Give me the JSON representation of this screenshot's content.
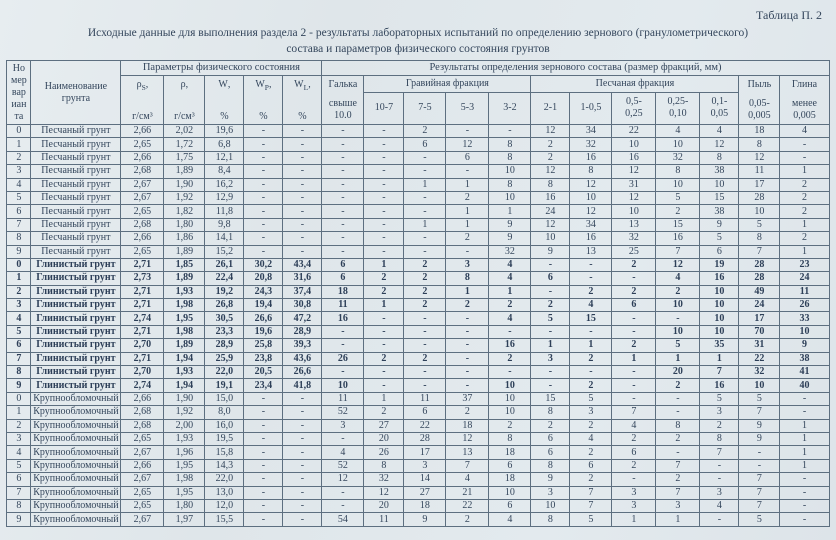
{
  "page": {
    "table_label": "Таблица П. 2",
    "caption_line1": "Исходные данные для выполнения  раздела 2 - результаты лабораторных испытаний по определению зернового (гранулометрического)",
    "caption_line2": "состава и параметров физического состояния грунтов"
  },
  "header": {
    "col_num_lines": [
      "Но",
      "мер",
      "вар",
      "иан",
      "та"
    ],
    "col_name": "Наименование\nгрунта",
    "group_phys": "Параметры физического состояния",
    "group_grain": "Результаты определения зернового состава (размер фракций, мм)",
    "phys_cols": [
      {
        "sym": "ρ",
        "sub": "S",
        "tail": ",",
        "unit": "г/см³"
      },
      {
        "sym": "ρ",
        "sub": "",
        "tail": ",",
        "unit": "г/см³"
      },
      {
        "sym": "W",
        "sub": "",
        "tail": ",",
        "unit": "%"
      },
      {
        "sym": "W",
        "sub": "P",
        "tail": ",",
        "unit": "%"
      },
      {
        "sym": "W",
        "sub": "L",
        "tail": ",",
        "unit": "%"
      }
    ],
    "col_galka": [
      "Галька",
      "свыше",
      "10.0"
    ],
    "group_gravel": "Гравийная фракция",
    "gravel_cols": [
      "10-7",
      "7-5",
      "5-3",
      "3-2"
    ],
    "group_sand": "Песчаная фракция",
    "sand_cols": [
      "2-1",
      "1-0,5",
      "0,5-\n0,25",
      "0,25-\n0,10",
      "0,1-\n0,05"
    ],
    "col_dust": [
      "Пыль",
      "0,05-",
      "0,005"
    ],
    "col_clay": [
      "Глина",
      "менее",
      "0,005"
    ]
  },
  "rows": [
    {
      "num": "0",
      "name": "Песчаный грунт",
      "bold": false,
      "values": [
        "2,66",
        "2,02",
        "19,6",
        "-",
        "-",
        "-",
        "-",
        "2",
        "-",
        "-",
        "12",
        "34",
        "22",
        "4",
        "4",
        "18",
        "4"
      ]
    },
    {
      "num": "1",
      "name": "Песчаный грунт",
      "bold": false,
      "values": [
        "2,65",
        "1,72",
        "6,8",
        "-",
        "-",
        "-",
        "-",
        "6",
        "12",
        "8",
        "2",
        "32",
        "10",
        "10",
        "12",
        "8",
        "-"
      ]
    },
    {
      "num": "2",
      "name": "Песчаный грунт",
      "bold": false,
      "values": [
        "2,66",
        "1,75",
        "12,1",
        "-",
        "-",
        "-",
        "-",
        "-",
        "6",
        "8",
        "2",
        "16",
        "16",
        "32",
        "8",
        "12",
        "-"
      ]
    },
    {
      "num": "3",
      "name": "Песчаный грунт",
      "bold": false,
      "values": [
        "2,68",
        "1,89",
        "8,4",
        "-",
        "-",
        "-",
        "-",
        "-",
        "-",
        "10",
        "12",
        "8",
        "12",
        "8",
        "38",
        "11",
        "1"
      ]
    },
    {
      "num": "4",
      "name": "Песчаный грунт",
      "bold": false,
      "values": [
        "2,67",
        "1,90",
        "16,2",
        "-",
        "-",
        "-",
        "-",
        "1",
        "1",
        "8",
        "8",
        "12",
        "31",
        "10",
        "10",
        "17",
        "2"
      ]
    },
    {
      "num": "5",
      "name": "Песчаный грунт",
      "bold": false,
      "values": [
        "2,67",
        "1,92",
        "12,9",
        "-",
        "-",
        "-",
        "-",
        "-",
        "2",
        "10",
        "16",
        "10",
        "12",
        "5",
        "15",
        "28",
        "2"
      ]
    },
    {
      "num": "6",
      "name": "Песчаный грунт",
      "bold": false,
      "values": [
        "2,65",
        "1,82",
        "11,8",
        "-",
        "-",
        "-",
        "-",
        "-",
        "1",
        "1",
        "24",
        "12",
        "10",
        "2",
        "38",
        "10",
        "2"
      ]
    },
    {
      "num": "7",
      "name": "Песчаный грунт",
      "bold": false,
      "values": [
        "2,68",
        "1,80",
        "9,8",
        "-",
        "-",
        "-",
        "-",
        "1",
        "1",
        "9",
        "12",
        "34",
        "13",
        "15",
        "9",
        "5",
        "1"
      ]
    },
    {
      "num": "8",
      "name": "Песчаный грунт",
      "bold": false,
      "values": [
        "2,66",
        "1,86",
        "14,1",
        "-",
        "-",
        "-",
        "-",
        "-",
        "2",
        "9",
        "10",
        "16",
        "32",
        "16",
        "5",
        "8",
        "2"
      ]
    },
    {
      "num": "9",
      "name": "Песчаный грунт",
      "bold": false,
      "values": [
        "2,65",
        "1,89",
        "15,2",
        "-",
        "-",
        "-",
        "-",
        "-",
        "-",
        "32",
        "9",
        "13",
        "25",
        "7",
        "6",
        "7",
        "1"
      ]
    },
    {
      "num": "0",
      "name": "Глинистый грунт",
      "bold": true,
      "values": [
        "2,71",
        "1,85",
        "26,1",
        "30,2",
        "43,4",
        "6",
        "1",
        "2",
        "3",
        "4",
        "-",
        "-",
        "2",
        "12",
        "19",
        "28",
        "23"
      ]
    },
    {
      "num": "1",
      "name": "Глинистый грунт",
      "bold": true,
      "values": [
        "2,73",
        "1,89",
        "22,4",
        "20,8",
        "31,6",
        "6",
        "2",
        "2",
        "8",
        "4",
        "6",
        "-",
        "-",
        "4",
        "16",
        "28",
        "24"
      ]
    },
    {
      "num": "2",
      "name": "Глинистый грунт",
      "bold": true,
      "values": [
        "2,71",
        "1,93",
        "19,2",
        "24,3",
        "37,4",
        "18",
        "2",
        "2",
        "1",
        "1",
        "-",
        "2",
        "2",
        "2",
        "10",
        "49",
        "11"
      ]
    },
    {
      "num": "3",
      "name": "Глинистый грунт",
      "bold": true,
      "values": [
        "2,71",
        "1,98",
        "26,8",
        "19,4",
        "30,8",
        "11",
        "1",
        "2",
        "2",
        "2",
        "2",
        "4",
        "6",
        "10",
        "10",
        "24",
        "26"
      ]
    },
    {
      "num": "4",
      "name": "Глинистый грунт",
      "bold": true,
      "values": [
        "2,74",
        "1,95",
        "30,5",
        "26,6",
        "47,2",
        "16",
        "-",
        "-",
        "-",
        "4",
        "5",
        "15",
        "-",
        "-",
        "10",
        "17",
        "33"
      ]
    },
    {
      "num": "5",
      "name": "Глинистый грунт",
      "bold": true,
      "values": [
        "2,71",
        "1,98",
        "23,3",
        "19,6",
        "28,9",
        "-",
        "-",
        "-",
        "-",
        "-",
        "-",
        "-",
        "-",
        "10",
        "10",
        "70",
        "10"
      ]
    },
    {
      "num": "6",
      "name": "Глинистый грунт",
      "bold": true,
      "values": [
        "2,70",
        "1,89",
        "28,9",
        "25,8",
        "39,3",
        "-",
        "-",
        "-",
        "-",
        "16",
        "1",
        "1",
        "2",
        "5",
        "35",
        "31",
        "9"
      ]
    },
    {
      "num": "7",
      "name": "Глинистый грунт",
      "bold": true,
      "values": [
        "2,71",
        "1,94",
        "25,9",
        "23,8",
        "43,6",
        "26",
        "2",
        "2",
        "-",
        "2",
        "3",
        "2",
        "1",
        "1",
        "1",
        "22",
        "38"
      ]
    },
    {
      "num": "8",
      "name": "Глинистый грунт",
      "bold": true,
      "values": [
        "2,70",
        "1,93",
        "22,0",
        "20,5",
        "26,6",
        "-",
        "-",
        "-",
        "-",
        "-",
        "-",
        "-",
        "-",
        "20",
        "7",
        "32",
        "41"
      ]
    },
    {
      "num": "9",
      "name": "Глинистый грунт",
      "bold": true,
      "values": [
        "2,74",
        "1,94",
        "19,1",
        "23,4",
        "41,8",
        "10",
        "-",
        "-",
        "-",
        "10",
        "-",
        "2",
        "-",
        "2",
        "16",
        "10",
        "40"
      ]
    },
    {
      "num": "0",
      "name": "Крупнообломочный",
      "bold": false,
      "values": [
        "2,66",
        "1,90",
        "15,0",
        "-",
        "-",
        "11",
        "1",
        "11",
        "37",
        "10",
        "15",
        "5",
        "-",
        "-",
        "5",
        "5",
        "-"
      ]
    },
    {
      "num": "1",
      "name": "Крупнообломочный",
      "bold": false,
      "values": [
        "2,68",
        "1,92",
        "8,0",
        "-",
        "-",
        "52",
        "2",
        "6",
        "2",
        "10",
        "8",
        "3",
        "7",
        "-",
        "3",
        "7",
        "-"
      ]
    },
    {
      "num": "2",
      "name": "Крупнообломочный",
      "bold": false,
      "values": [
        "2,68",
        "2,00",
        "16,0",
        "-",
        "-",
        "3",
        "27",
        "22",
        "18",
        "2",
        "2",
        "2",
        "4",
        "8",
        "2",
        "9",
        "1"
      ]
    },
    {
      "num": "3",
      "name": "Крупнообломочный",
      "bold": false,
      "values": [
        "2,65",
        "1,93",
        "19,5",
        "-",
        "-",
        "-",
        "20",
        "28",
        "12",
        "8",
        "6",
        "4",
        "2",
        "2",
        "8",
        "9",
        "1"
      ]
    },
    {
      "num": "4",
      "name": "Крупнообломочный",
      "bold": false,
      "values": [
        "2,67",
        "1,96",
        "15,8",
        "-",
        "-",
        "4",
        "26",
        "17",
        "13",
        "18",
        "6",
        "2",
        "6",
        "-",
        "7",
        "-",
        "1"
      ]
    },
    {
      "num": "5",
      "name": "Крупнообломочный",
      "bold": false,
      "values": [
        "2,66",
        "1,95",
        "14,3",
        "-",
        "-",
        "52",
        "8",
        "3",
        "7",
        "6",
        "8",
        "6",
        "2",
        "7",
        "-",
        "-",
        "1"
      ]
    },
    {
      "num": "6",
      "name": "Крупнообломочный",
      "bold": false,
      "values": [
        "2,67",
        "1,98",
        "22,0",
        "-",
        "-",
        "12",
        "32",
        "14",
        "4",
        "18",
        "9",
        "2",
        "-",
        "2",
        "-",
        "7",
        "-"
      ]
    },
    {
      "num": "7",
      "name": "Крупнообломочный",
      "bold": false,
      "values": [
        "2,65",
        "1,95",
        "13,0",
        "-",
        "-",
        "-",
        "12",
        "27",
        "21",
        "10",
        "3",
        "7",
        "3",
        "7",
        "3",
        "7",
        "-"
      ]
    },
    {
      "num": "8",
      "name": "Крупнообломочный",
      "bold": false,
      "values": [
        "2,65",
        "1,80",
        "12,0",
        "-",
        "-",
        "-",
        "20",
        "18",
        "22",
        "6",
        "10",
        "7",
        "3",
        "3",
        "4",
        "7",
        "-"
      ]
    },
    {
      "num": "9",
      "name": "Крупнообломочный",
      "bold": false,
      "values": [
        "2,67",
        "1,97",
        "15,5",
        "-",
        "-",
        "54",
        "11",
        "9",
        "2",
        "4",
        "8",
        "5",
        "1",
        "1",
        "-",
        "5",
        "-"
      ]
    }
  ]
}
